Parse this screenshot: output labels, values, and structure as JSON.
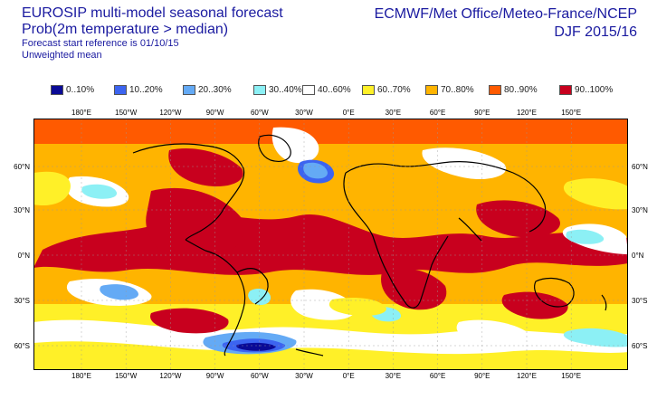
{
  "header": {
    "title_left_1": "EUROSIP multi-model seasonal forecast",
    "title_left_2": "Prob(2m temperature > median)",
    "title_left_3": "Forecast start reference is 01/10/15",
    "title_left_4": "Unweighted mean",
    "title_right_1": "ECMWF/Met Office/Meteo-France/NCEP",
    "title_right_2": "DJF 2015/16"
  },
  "legend": [
    {
      "label": "0..10%",
      "color": "#0a0a96"
    },
    {
      "label": "10..20%",
      "color": "#3c64f0"
    },
    {
      "label": "20..30%",
      "color": "#64aaf5"
    },
    {
      "label": "30..40%",
      "color": "#8cf0f5"
    },
    {
      "label": "40..60%",
      "color": "#ffffff"
    },
    {
      "label": "60..70%",
      "color": "#fff028"
    },
    {
      "label": "70..80%",
      "color": "#ffb400"
    },
    {
      "label": "80..90%",
      "color": "#ff5a00"
    },
    {
      "label": "90..100%",
      "color": "#c8001e"
    }
  ],
  "map": {
    "lon_labels": [
      "180°E",
      "150°W",
      "120°W",
      "90°W",
      "60°W",
      "30°W",
      "0°E",
      "30°E",
      "60°E",
      "90°E",
      "120°E",
      "150°E"
    ],
    "lat_labels": [
      "60°N",
      "30°N",
      "0°N",
      "30°S",
      "60°S"
    ]
  }
}
